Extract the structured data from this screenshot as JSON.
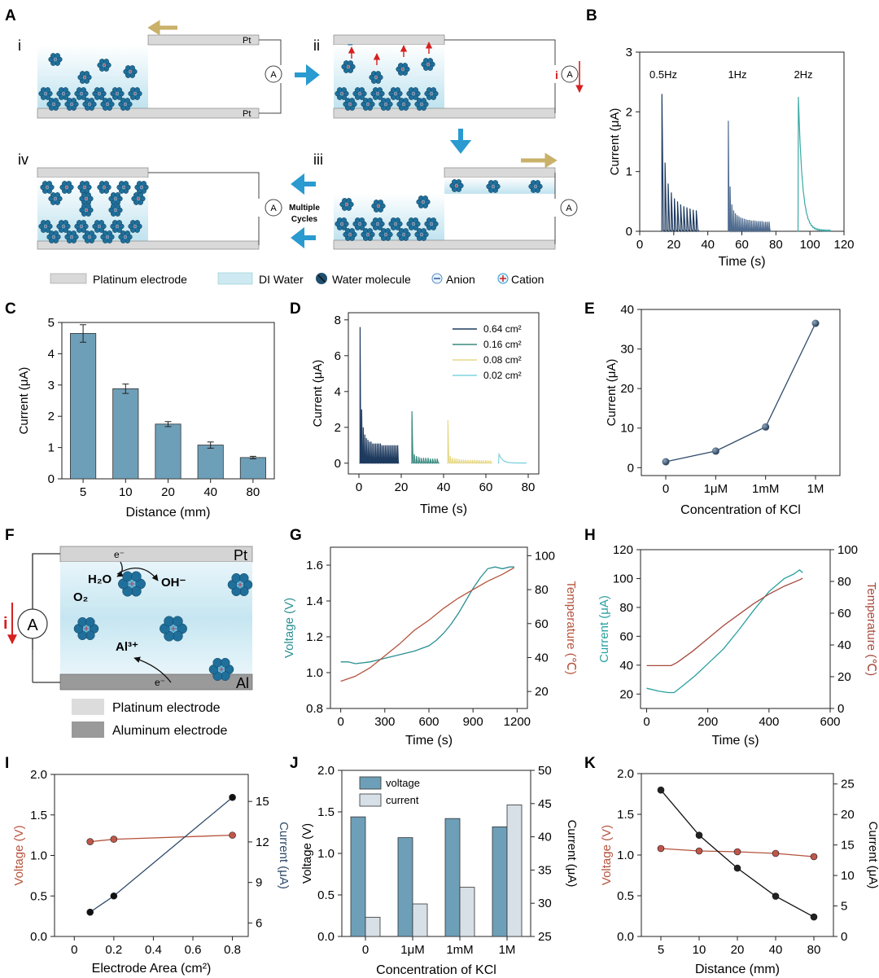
{
  "figure": {
    "panel_letters": [
      "A",
      "B",
      "C",
      "D",
      "E",
      "F",
      "G",
      "H",
      "I",
      "J",
      "K"
    ],
    "panelA": {
      "step_labels": [
        "i",
        "ii",
        "iii",
        "iv"
      ],
      "pt_label": "Pt",
      "ammeter_symbol": "A",
      "current_symbol": "i",
      "multiple_cycles": [
        "Multiple",
        "Cycles"
      ],
      "colors": {
        "water": "#cfe9f2",
        "electrode": "#d9d9d9",
        "molecule": "#1f6f9a",
        "arrow": "#2a9ad0",
        "current_arrow": "#d62020"
      }
    },
    "legendA": [
      {
        "icon": "electrode-swatch",
        "label": "Platinum electrode"
      },
      {
        "icon": "water-swatch",
        "label": "DI Water"
      },
      {
        "icon": "water-molecule-icon",
        "label": "Water molecule"
      },
      {
        "icon": "anion-icon",
        "label": "Anion"
      },
      {
        "icon": "cation-icon",
        "label": "Cation"
      }
    ],
    "panelF": {
      "top_electrode": "Pt",
      "bottom_electrode": "Al",
      "electron_top": "e⁻",
      "electron_bottom": "e⁻",
      "h2o": "H₂O",
      "oh": "OH⁻",
      "o2": "O₂",
      "al3": "Al³⁺",
      "ammeter_symbol": "A",
      "current_symbol": "i",
      "legend": [
        "Platinum electrode",
        "Aluminum electrode"
      ],
      "colors": {
        "pt": "#d4d4d4",
        "al": "#9a9a9a",
        "water": "#cfe9f2"
      }
    }
  },
  "chart_data": [
    {
      "panel": "B",
      "type": "line",
      "xlabel": "Time (s)",
      "ylabel": "Current (μA)",
      "xlim": [
        0,
        120
      ],
      "ylim": [
        0,
        3
      ],
      "xticks": [
        0,
        20,
        40,
        60,
        80,
        100,
        120
      ],
      "yticks": [
        0,
        1,
        2,
        3
      ],
      "annotations": [
        "0.5Hz",
        "1Hz",
        "2Hz"
      ],
      "series": [
        {
          "name": "0.5Hz",
          "color": "#1e3a5f",
          "t0": 13,
          "t1": 35,
          "peaks": [
            2.3,
            1.15,
            0.8,
            0.65,
            0.55,
            0.5,
            0.45,
            0.42,
            0.4,
            0.38,
            0.36,
            0.35
          ]
        },
        {
          "name": "1Hz",
          "color": "#4f6b8f",
          "t0": 52,
          "t1": 77,
          "peaks": [
            1.85,
            0.75,
            0.45,
            0.35,
            0.3,
            0.27,
            0.25,
            0.23,
            0.22,
            0.21,
            0.2,
            0.19,
            0.19,
            0.18,
            0.18,
            0.18,
            0.17,
            0.17,
            0.17,
            0.17,
            0.16,
            0.16,
            0.16,
            0.16
          ]
        },
        {
          "name": "2Hz",
          "color": "#3aa9a5",
          "t0": 93,
          "t1": 112,
          "peaks": [
            2.25
          ]
        }
      ]
    },
    {
      "panel": "C",
      "type": "bar",
      "xlabel": "Distance (mm)",
      "ylabel": "Current (μA)",
      "categories": [
        "5",
        "10",
        "20",
        "40",
        "80"
      ],
      "values": [
        4.65,
        2.88,
        1.75,
        1.08,
        0.68
      ],
      "errors": [
        0.28,
        0.15,
        0.08,
        0.1,
        0.04
      ],
      "ylim": [
        0,
        5
      ],
      "yticks": [
        0,
        1,
        2,
        3,
        4,
        5
      ],
      "color": "#6e9fb8"
    },
    {
      "panel": "D",
      "type": "line",
      "xlabel": "Time (s)",
      "ylabel": "Current (μA)",
      "xlim": [
        -5,
        85
      ],
      "ylim": [
        -0.6,
        8.4
      ],
      "xticks": [
        0,
        20,
        40,
        60,
        80
      ],
      "yticks": [
        0,
        2,
        4,
        6,
        8
      ],
      "series": [
        {
          "name": "0.64 cm²",
          "color": "#1e3a5f",
          "t0": 0.5,
          "t1": 19,
          "peaks": [
            7.6,
            3.0,
            2.0,
            1.6,
            1.4,
            1.3,
            1.2,
            1.2,
            1.1,
            1.1,
            1.1,
            1.1,
            1.1,
            1.1,
            1.0,
            1.0,
            1.0,
            1.0,
            1.0,
            1.0,
            1.0,
            1.0,
            1.0,
            1.0,
            1.0
          ]
        },
        {
          "name": "0.16 cm²",
          "color": "#3a8a80",
          "t0": 25,
          "t1": 38,
          "peaks": [
            2.9,
            0.5,
            0.4,
            0.35,
            0.3,
            0.3,
            0.3,
            0.3,
            0.25,
            0.25,
            0.25,
            0.25
          ]
        },
        {
          "name": "0.08 cm²",
          "color": "#e6d98a",
          "t0": 42,
          "t1": 63,
          "peaks": [
            2.4,
            0.4,
            0.3,
            0.28,
            0.25,
            0.22,
            0.2,
            0.2,
            0.2,
            0.18,
            0.18,
            0.18,
            0.18,
            0.18,
            0.16,
            0.16,
            0.16,
            0.16,
            0.15,
            0.15
          ]
        },
        {
          "name": "0.02 cm²",
          "color": "#7fd3e0",
          "t0": 66,
          "t1": 79,
          "peaks": [
            0.5
          ]
        }
      ]
    },
    {
      "panel": "E",
      "type": "line",
      "xlabel": "Concentration of KCl",
      "ylabel": "Current (μA)",
      "categories": [
        "0",
        "1μM",
        "1mM",
        "1M"
      ],
      "values": [
        1.5,
        4.2,
        10.3,
        36.5
      ],
      "ylim": [
        -2,
        40
      ],
      "yticks": [
        0,
        10,
        20,
        30,
        40
      ],
      "color": "#2f4b6a"
    },
    {
      "panel": "G",
      "type": "line",
      "xlabel": "Time (s)",
      "ylabel": "Voltage (V)",
      "y2label": "Temperature (℃)",
      "xlim": [
        -70,
        1270
      ],
      "ylim": [
        0.8,
        1.7
      ],
      "y2lim": [
        10,
        105
      ],
      "xticks": [
        0,
        300,
        600,
        900,
        1200
      ],
      "yticks": [
        0.8,
        1.0,
        1.2,
        1.4,
        1.6
      ],
      "y2ticks": [
        20,
        40,
        60,
        80,
        100
      ],
      "series": [
        {
          "name": "Voltage",
          "axis": "left",
          "color": "#2a8f93",
          "x": [
            0,
            50,
            100,
            200,
            300,
            400,
            500,
            600,
            650,
            700,
            750,
            800,
            850,
            900,
            950,
            1000,
            1050,
            1100,
            1150,
            1180
          ],
          "y": [
            1.06,
            1.06,
            1.05,
            1.06,
            1.08,
            1.1,
            1.12,
            1.15,
            1.18,
            1.22,
            1.27,
            1.33,
            1.4,
            1.47,
            1.53,
            1.58,
            1.59,
            1.58,
            1.59,
            1.59
          ]
        },
        {
          "name": "Temperature",
          "axis": "right",
          "color": "#b5533c",
          "x": [
            0,
            100,
            200,
            300,
            400,
            500,
            600,
            700,
            800,
            900,
            1000,
            1100,
            1180
          ],
          "y": [
            26,
            29,
            34,
            41,
            48,
            56,
            62,
            69,
            75,
            80,
            85,
            89,
            93
          ]
        }
      ]
    },
    {
      "panel": "H",
      "type": "line",
      "xlabel": "Time (s)",
      "ylabel": "Current (μA)",
      "y2label": "Temperature (℃)",
      "xlim": [
        -20,
        600
      ],
      "ylim": [
        10,
        120
      ],
      "y2lim": [
        0,
        100
      ],
      "xticks": [
        0,
        200,
        400,
        600
      ],
      "yticks": [
        20,
        40,
        60,
        80,
        100,
        120
      ],
      "y2ticks": [
        0,
        20,
        40,
        60,
        80,
        100
      ],
      "series": [
        {
          "name": "Current",
          "axis": "left",
          "color": "#2aa0a0",
          "x": [
            0,
            40,
            70,
            90,
            120,
            160,
            200,
            250,
            300,
            350,
            400,
            450,
            480,
            500,
            510
          ],
          "y": [
            24,
            22,
            21,
            21,
            26,
            33,
            41,
            51,
            64,
            78,
            91,
            100,
            103,
            106,
            104
          ]
        },
        {
          "name": "Temperature",
          "axis": "right",
          "color": "#a64a3e",
          "x": [
            0,
            40,
            80,
            100,
            150,
            200,
            250,
            300,
            350,
            400,
            450,
            500,
            510
          ],
          "y": [
            27,
            27,
            27,
            29,
            36,
            44,
            52,
            59,
            66,
            72,
            77,
            81,
            82
          ]
        }
      ]
    },
    {
      "panel": "I",
      "type": "line",
      "xlabel": "Electrode Area (cm²)",
      "ylabel": "Voltage (V)",
      "y2label": "Current (μA)",
      "xlim": [
        -0.1,
        0.88
      ],
      "ylim": [
        0,
        2
      ],
      "y2lim": [
        5,
        17
      ],
      "xticks": [
        0.0,
        0.2,
        0.4,
        0.6,
        0.8
      ],
      "yticks": [
        0.0,
        0.5,
        1.0,
        1.5,
        2.0
      ],
      "y2ticks": [
        6,
        9,
        12,
        15
      ],
      "series": [
        {
          "name": "Voltage",
          "axis": "left",
          "color": "#b5533c",
          "x": [
            0.08,
            0.2,
            0.8
          ],
          "y": [
            1.17,
            1.2,
            1.25
          ]
        },
        {
          "name": "Current",
          "axis": "right",
          "color": "#2f4b6a",
          "x": [
            0.08,
            0.2,
            0.8
          ],
          "y": [
            6.8,
            8.0,
            15.3
          ]
        }
      ]
    },
    {
      "panel": "J",
      "type": "bar",
      "xlabel": "Concentration of KCl",
      "ylabel": "Voltage (V)",
      "y2label": "Current (μA)",
      "categories": [
        "0",
        "1μM",
        "1mM",
        "1M"
      ],
      "ylim": [
        0,
        2
      ],
      "y2lim": [
        25,
        50
      ],
      "yticks": [
        0.0,
        0.5,
        1.0,
        1.5,
        2.0
      ],
      "y2ticks": [
        25,
        30,
        35,
        40,
        45,
        50
      ],
      "legend": [
        "voltage",
        "current"
      ],
      "series": [
        {
          "name": "voltage",
          "axis": "left",
          "color": "#6e9fb8",
          "values": [
            1.44,
            1.19,
            1.42,
            1.32
          ]
        },
        {
          "name": "current",
          "axis": "right",
          "color": "#d7e0e6",
          "values": [
            27.9,
            29.9,
            32.4,
            44.8
          ]
        }
      ]
    },
    {
      "panel": "K",
      "type": "line",
      "xlabel": "Distance (mm)",
      "ylabel": "Voltage (V)",
      "y2label": "Current (μA)",
      "categories": [
        "5",
        "10",
        "20",
        "40",
        "80"
      ],
      "ylim": [
        0,
        2
      ],
      "y2lim": [
        0,
        26.7
      ],
      "yticks": [
        0.0,
        0.5,
        1.0,
        1.5,
        2.0
      ],
      "y2ticks": [
        0,
        5,
        10,
        15,
        20,
        25
      ],
      "series": [
        {
          "name": "Voltage",
          "axis": "left",
          "color": "#b5533c",
          "values": [
            1.08,
            1.05,
            1.04,
            1.02,
            0.98
          ]
        },
        {
          "name": "Current",
          "axis": "right",
          "color": "#111111",
          "values": [
            24.0,
            16.6,
            11.2,
            6.6,
            3.2
          ]
        }
      ]
    }
  ]
}
